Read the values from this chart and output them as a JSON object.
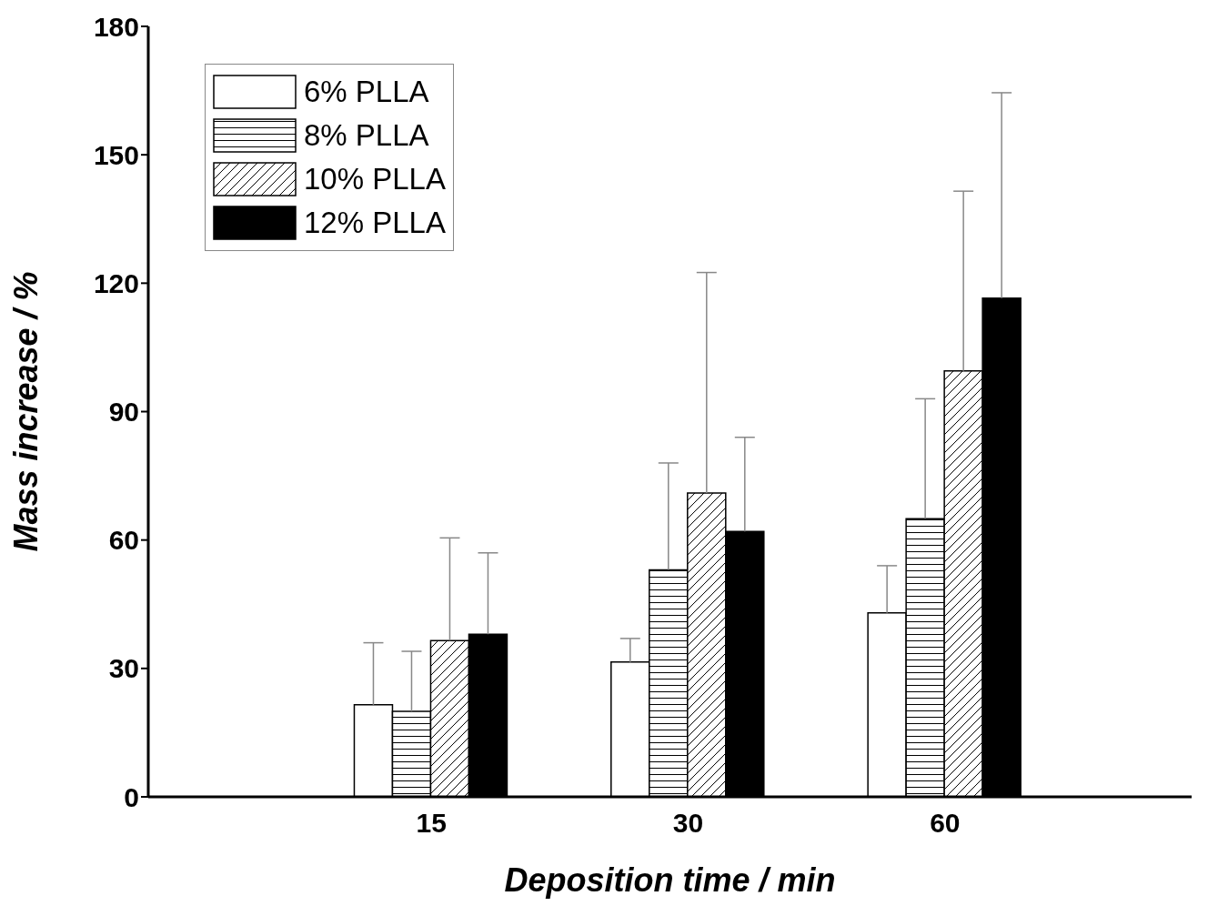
{
  "chart_data": {
    "type": "bar",
    "xlabel": "Deposition time / min",
    "ylabel": "Mass increase / %",
    "categories": [
      "15",
      "30",
      "60"
    ],
    "series": [
      {
        "name": "6% PLLA",
        "color": "#ffffff",
        "values": [
          21.5,
          31.5,
          43
        ],
        "errors": [
          [
            21.5,
            36
          ],
          [
            31.5,
            37
          ],
          [
            43,
            54
          ]
        ]
      },
      {
        "name": "8% PLLA",
        "color": "#000000",
        "values": [
          20,
          53,
          65
        ],
        "errors": [
          [
            20,
            34
          ],
          [
            53,
            78
          ],
          [
            65,
            93
          ]
        ]
      },
      {
        "name": "10% PLLA",
        "color": "#000000",
        "values": [
          36.5,
          71,
          99.5
        ],
        "errors": [
          [
            36.5,
            60.5
          ],
          [
            71,
            122.5
          ],
          [
            99.5,
            141.5
          ]
        ]
      },
      {
        "name": "12% PLLA",
        "color": "#000000",
        "values": [
          38,
          62,
          116.5
        ],
        "errors": [
          [
            38,
            57
          ],
          [
            62,
            84
          ],
          [
            116.5,
            164.5
          ]
        ]
      }
    ],
    "ylim": [
      0,
      180
    ],
    "yticks": [
      0,
      30,
      60,
      90,
      120,
      150,
      180
    ],
    "grid": false,
    "legend": "top left"
  }
}
